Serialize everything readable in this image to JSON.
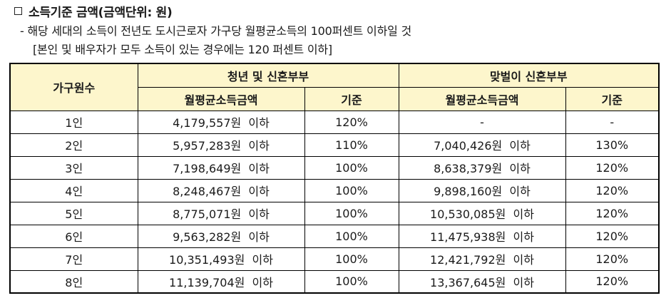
{
  "heading": {
    "title": "소득기준 금액(금액단위: 원)"
  },
  "notes": {
    "line1": "- 해당 세대의 소득이 전년도 도시근로자 가구당 월평균소득의 100퍼센트 이하일 것",
    "line2": "[본인 및 배우자가 모두 소득이 있는 경우에는 120 퍼센트 이하]"
  },
  "table": {
    "col_household": "가구원수",
    "group1": "청년 및 신혼부부",
    "group2": "맞벌이 신혼부부",
    "sub_amount1": "월평균소득금액",
    "sub_standard1": "기준",
    "sub_amount2": "월평균소득금액",
    "sub_standard2": "기준",
    "rows": [
      {
        "household": "1인",
        "amount1": "4,179,557원  이하",
        "standard1": "120%",
        "amount2": "-",
        "standard2": "-"
      },
      {
        "household": "2인",
        "amount1": "5,957,283원  이하",
        "standard1": "110%",
        "amount2": "7,040,426원  이하",
        "standard2": "130%"
      },
      {
        "household": "3인",
        "amount1": "7,198,649원  이하",
        "standard1": "100%",
        "amount2": "8,638,379원  이하",
        "standard2": "120%"
      },
      {
        "household": "4인",
        "amount1": "8,248,467원  이하",
        "standard1": "100%",
        "amount2": "9,898,160원  이하",
        "standard2": "120%"
      },
      {
        "household": "5인",
        "amount1": "8,775,071원  이하",
        "standard1": "100%",
        "amount2": "10,530,085원  이하",
        "standard2": "120%"
      },
      {
        "household": "6인",
        "amount1": "9,563,282원  이하",
        "standard1": "100%",
        "amount2": "11,475,938원  이하",
        "standard2": "120%"
      },
      {
        "household": "7인",
        "amount1": "10,351,493원  이하",
        "standard1": "100%",
        "amount2": "12,421,792원  이하",
        "standard2": "120%"
      },
      {
        "household": "8인",
        "amount1": "11,139,704원  이하",
        "standard1": "100%",
        "amount2": "13,367,645원  이하",
        "standard2": "120%"
      }
    ]
  },
  "colors": {
    "header_bg": "#fdf6cc",
    "border": "#000000"
  }
}
